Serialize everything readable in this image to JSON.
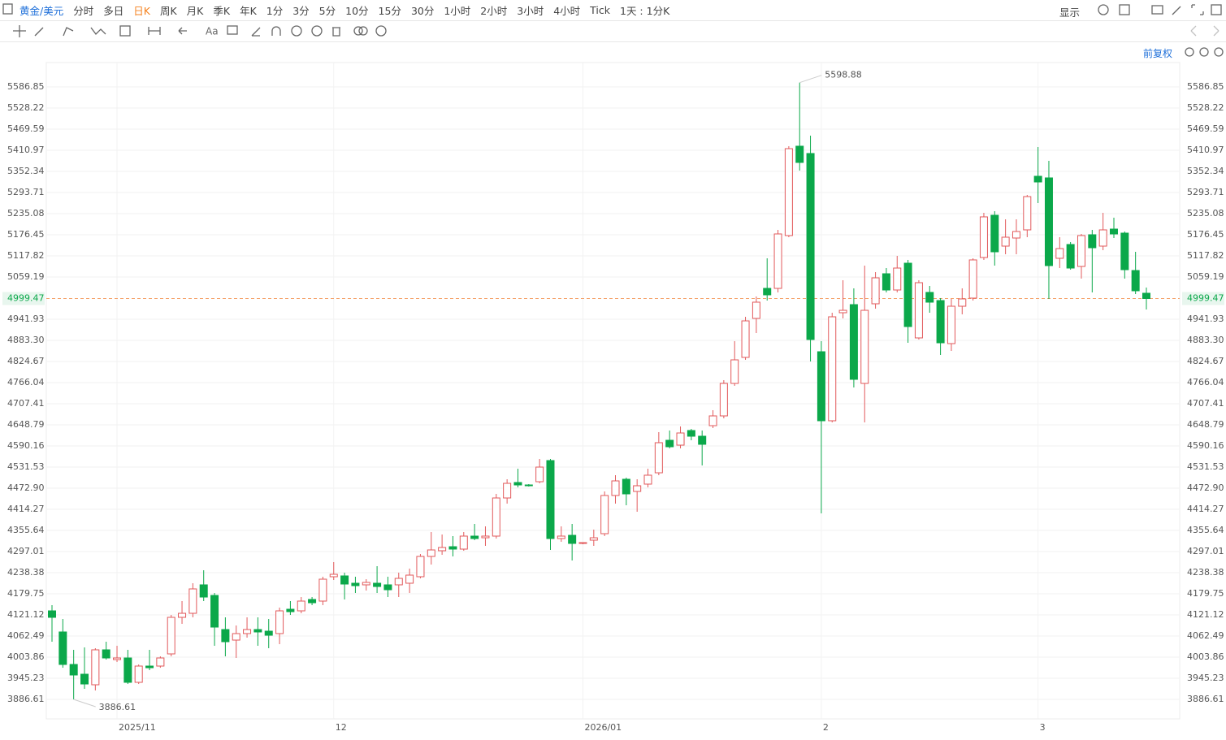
{
  "toolbar": {
    "symbol": "黄金/美元",
    "periods": [
      "分时",
      "多日",
      "日K",
      "周K",
      "月K",
      "季K",
      "年K",
      "1分",
      "3分",
      "5分",
      "10分",
      "15分",
      "30分",
      "1小时",
      "2小时",
      "3小时",
      "4小时",
      "Tick",
      "1天 : 1分K"
    ],
    "active_period": 2,
    "display": "显示",
    "adjust": "前复权"
  },
  "chart_data": {
    "type": "candlestick",
    "categories": [
      null,
      null,
      null,
      null,
      null,
      null,
      "2025/11",
      null,
      null,
      null,
      null,
      null,
      null,
      null,
      null,
      null,
      null,
      null,
      null,
      null,
      null,
      null,
      null,
      null,
      null,
      null,
      "12",
      null,
      null,
      null,
      null,
      null,
      null,
      null,
      null,
      null,
      null,
      null,
      null,
      null,
      null,
      null,
      null,
      null,
      null,
      null,
      null,
      null,
      null,
      "2026/01",
      null,
      null,
      null,
      null,
      null,
      null,
      null,
      null,
      null,
      null,
      null,
      null,
      null,
      null,
      null,
      null,
      null,
      null,
      null,
      null,
      null,
      "2",
      null,
      null,
      null,
      null,
      null,
      null,
      null,
      null,
      null,
      null,
      null,
      null,
      null,
      null,
      null,
      null,
      null,
      null,
      null,
      "3",
      null,
      null,
      null,
      null,
      null,
      null,
      null,
      null,
      null,
      null
    ],
    "ohlc": [
      [
        4132.4,
        4148.2,
        4046.7,
        4114.4
      ],
      [
        4073.8,
        4109.8,
        3974.5,
        3983.6
      ],
      [
        3983.6,
        4024.2,
        3886.61,
        3954.3
      ],
      [
        3956.5,
        4030.9,
        3915.9,
        3929.4
      ],
      [
        3927.2,
        4028.7,
        3911.4,
        4024.2
      ],
      [
        4024.2,
        4046.7,
        3997.1,
        4001.6
      ],
      [
        3997.1,
        4035.4,
        3990.3,
        4001.6
      ],
      [
        4001.6,
        4024.2,
        3929.4,
        3934.0
      ],
      [
        3934.0,
        3983.6,
        3929.4,
        3979.1
      ],
      [
        3979.1,
        4024.2,
        3967.8,
        3974.5
      ],
      [
        3979.1,
        4006.1,
        3974.5,
        4001.6
      ],
      [
        4012.9,
        4121.1,
        4006.1,
        4114.4
      ],
      [
        4114.4,
        4159.5,
        4096.3,
        4125.6
      ],
      [
        4125.6,
        4209.1,
        4114.4,
        4193.3
      ],
      [
        4204.6,
        4245.1,
        4159.5,
        4170.7
      ],
      [
        4175.2,
        4182.0,
        4035.4,
        4087.3
      ],
      [
        4080.5,
        4114.4,
        4006.1,
        4046.7
      ],
      [
        4051.2,
        4091.8,
        4001.6,
        4069.3
      ],
      [
        4069.3,
        4114.4,
        4058.0,
        4080.5
      ],
      [
        4080.5,
        4114.4,
        4035.4,
        4073.8
      ],
      [
        4076.0,
        4109.8,
        4028.7,
        4064.7
      ],
      [
        4069.3,
        4141.4,
        4039.9,
        4132.4
      ],
      [
        4136.9,
        4159.5,
        4121.1,
        4130.1
      ],
      [
        4132.4,
        4170.7,
        4125.6,
        4159.5
      ],
      [
        4164.0,
        4170.7,
        4148.2,
        4154.9
      ],
      [
        4159.5,
        4227.1,
        4148.2,
        4220.3
      ],
      [
        4227.1,
        4267.7,
        4218.1,
        4233.9
      ],
      [
        4229.4,
        4238.4,
        4164.0,
        4206.8
      ],
      [
        4209.1,
        4227.1,
        4182.0,
        4202.3
      ],
      [
        4204.6,
        4220.3,
        4188.8,
        4211.3
      ],
      [
        4209.1,
        4256.4,
        4182.0,
        4200.0
      ],
      [
        4204.6,
        4227.1,
        4170.7,
        4191.0
      ],
      [
        4204.6,
        4238.4,
        4170.7,
        4222.6
      ],
      [
        4209.1,
        4249.7,
        4182.0,
        4231.6
      ],
      [
        4227.1,
        4290.2,
        4222.6,
        4283.5
      ],
      [
        4283.5,
        4351.1,
        4260.9,
        4301.5
      ],
      [
        4299.3,
        4344.4,
        4288.0,
        4308.3
      ],
      [
        4310.5,
        4339.9,
        4283.5,
        4303.8
      ],
      [
        4303.8,
        4351.1,
        4299.3,
        4339.9
      ],
      [
        4339.9,
        4373.7,
        4328.6,
        4333.1
      ],
      [
        4335.3,
        4366.9,
        4312.8,
        4339.9
      ],
      [
        4339.9,
        4457.1,
        4333.1,
        4445.8
      ],
      [
        4445.8,
        4497.7,
        4430.1,
        4486.4
      ],
      [
        4488.7,
        4527.0,
        4475.2,
        4481.9
      ],
      [
        4481.9,
        4484.2,
        4477.4,
        4479.7
      ],
      [
        4490.9,
        4554.1,
        4486.4,
        4531.5
      ],
      [
        4549.6,
        4554.1,
        4301.5,
        4333.1
      ],
      [
        4333.1,
        4366.9,
        4324.1,
        4339.9
      ],
      [
        4342.1,
        4373.7,
        4272.2,
        4319.6
      ],
      [
        4319.6,
        4321.8,
        4317.3,
        4321.8
      ],
      [
        4328.6,
        4357.9,
        4312.8,
        4335.3
      ],
      [
        4346.6,
        4463.9,
        4339.9,
        4452.6
      ],
      [
        4452.6,
        4509.0,
        4430.1,
        4493.2
      ],
      [
        4497.7,
        4502.2,
        4425.5,
        4457.1
      ],
      [
        4463.9,
        4497.7,
        4407.5,
        4479.7
      ],
      [
        4484.2,
        4527.0,
        4475.2,
        4509.0
      ],
      [
        4515.7,
        4628.5,
        4509.0,
        4599.2
      ],
      [
        4605.9,
        4633.0,
        4583.4,
        4587.9
      ],
      [
        4592.4,
        4644.3,
        4583.4,
        4626.2
      ],
      [
        4633.0,
        4637.5,
        4605.9,
        4617.2
      ],
      [
        4617.2,
        4633.0,
        4536.0,
        4594.7
      ],
      [
        4646.5,
        4689.4,
        4639.8,
        4673.6
      ],
      [
        4673.6,
        4772.8,
        4666.8,
        4763.8
      ],
      [
        4763.8,
        4881.1,
        4757.0,
        4829.2
      ],
      [
        4836.0,
        4948.7,
        4829.2,
        4937.4
      ],
      [
        4944.2,
        5005.1,
        4903.6,
        4989.3
      ],
      [
        5027.6,
        5111.1,
        4993.8,
        5009.6
      ],
      [
        5027.6,
        5190.0,
        5016.4,
        5178.7
      ],
      [
        5174.2,
        5422.3,
        5169.7,
        5415.5
      ],
      [
        5422.3,
        5598.88,
        5354.6,
        5377.2
      ],
      [
        5402.0,
        5451.6,
        4824.7,
        4885.6
      ],
      [
        4851.7,
        4881.1,
        4403.0,
        4660.1
      ],
      [
        4660.1,
        4960.0,
        4655.6,
        4948.7
      ],
      [
        4960.0,
        5050.2,
        4944.2,
        4966.7
      ],
      [
        4982.5,
        5027.6,
        4752.5,
        4775.1
      ],
      [
        4763.8,
        5090.8,
        4655.6,
        4966.7
      ],
      [
        4984.8,
        5072.7,
        4971.3,
        5056.9
      ],
      [
        5068.2,
        5084.0,
        5016.4,
        5023.1
      ],
      [
        5023.1,
        5117.8,
        5016.4,
        5084.0
      ],
      [
        5097.5,
        5106.6,
        4876.5,
        4921.6
      ],
      [
        4890.1,
        5050.2,
        4885.6,
        5043.4
      ],
      [
        5016.4,
        5034.4,
        4960.0,
        4989.3
      ],
      [
        4993.8,
        5000.6,
        4842.7,
        4876.5
      ],
      [
        4874.3,
        4998.3,
        4854.0,
        4978.0
      ],
      [
        4978.0,
        5027.6,
        4955.5,
        4998.3
      ],
      [
        5000.6,
        5111.1,
        4993.8,
        5106.6
      ],
      [
        5113.3,
        5237.3,
        5106.6,
        5226.1
      ],
      [
        5230.6,
        5241.9,
        5090.8,
        5129.1
      ],
      [
        5144.9,
        5219.3,
        5122.3,
        5169.7
      ],
      [
        5167.4,
        5219.3,
        5122.3,
        5185.5
      ],
      [
        5190.0,
        5287.0,
        5169.7,
        5282.4
      ],
      [
        5338.8,
        5420.0,
        5264.4,
        5323.0
      ],
      [
        5334.3,
        5381.7,
        4998.3,
        5090.8
      ],
      [
        5111.1,
        5169.7,
        5084.0,
        5138.1
      ],
      [
        5149.4,
        5156.2,
        5079.5,
        5084.0
      ],
      [
        5088.5,
        5178.7,
        5054.7,
        5174.2
      ],
      [
        5176.5,
        5190.0,
        5016.4,
        5140.4
      ],
      [
        5144.9,
        5237.3,
        5133.6,
        5190.0
      ],
      [
        5192.2,
        5223.8,
        5167.4,
        5178.7
      ],
      [
        5181.0,
        5185.5,
        5054.7,
        5079.5
      ],
      [
        5077.2,
        5129.1,
        5011.8,
        5020.9
      ],
      [
        5014.1,
        5029.9,
        4969.0,
        4999.47
      ]
    ],
    "up_color": "#e2595b",
    "down_color": "#0ba84a",
    "ylim": [
      3832.5,
      5654.5
    ],
    "yticks": [
      3886.61,
      3945.23,
      4003.86,
      4062.49,
      4121.12,
      4179.75,
      4238.38,
      4297.01,
      4355.64,
      4414.27,
      {
        "value": 4472.9,
        "label": "4472.90"
      },
      4531.53,
      4590.16,
      4648.79,
      4707.41,
      4766.04,
      4824.67,
      {
        "value": 4883.3,
        "label": "4883.30"
      },
      4941.93,
      5059.19,
      5117.82,
      5176.45,
      5235.08,
      5293.71,
      5352.34,
      5410.97,
      5469.59,
      5528.22,
      5586.85
    ],
    "grid": true,
    "current_price": 4999.47,
    "current_color": "#f5a26a",
    "high_label": 5598.88,
    "low_label": 3886.61
  }
}
